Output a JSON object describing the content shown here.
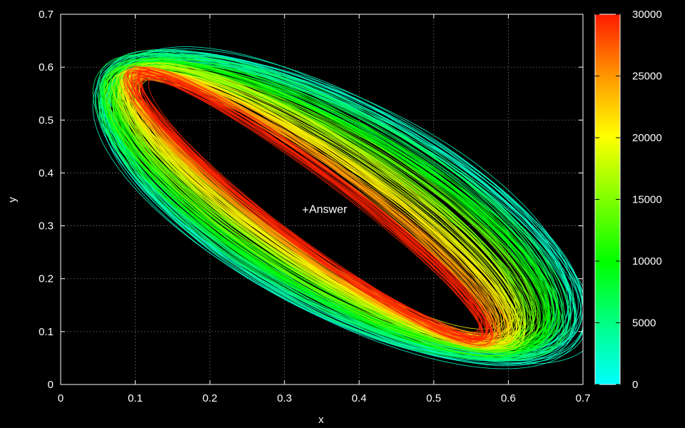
{
  "chart_data": {
    "type": "line",
    "description_of_marks": "ensemble of closed elliptical orbit traces colored by time step",
    "xlabel": "x",
    "ylabel": "y",
    "xlim": [
      0,
      0.7
    ],
    "ylim": [
      0,
      0.7
    ],
    "x_ticks": [
      "0",
      "0.1",
      "0.2",
      "0.3",
      "0.4",
      "0.5",
      "0.6",
      "0.7"
    ],
    "y_ticks": [
      "0",
      "0.1",
      "0.2",
      "0.3",
      "0.4",
      "0.5",
      "0.6",
      "0.7"
    ],
    "grid": true,
    "annotation": {
      "text": "Answer",
      "x": 0.33,
      "y": 0.33
    },
    "colorbar": {
      "range": [
        0,
        30000
      ],
      "ticks": [
        "0",
        "5000",
        "10000",
        "15000",
        "20000",
        "25000",
        "30000"
      ],
      "palette": [
        "#00ffff",
        "#00ff66",
        "#00ff00",
        "#80ff00",
        "#ffff00",
        "#ff9900",
        "#ff2200"
      ]
    },
    "series": [
      {
        "t": 2000,
        "color": "#00ffcc",
        "cx": 0.375,
        "cy": 0.335,
        "a": 0.395,
        "b": 0.165,
        "angle_deg": -41
      },
      {
        "t": 5000,
        "color": "#00ff66",
        "cx": 0.365,
        "cy": 0.335,
        "a": 0.385,
        "b": 0.15,
        "angle_deg": -42
      },
      {
        "t": 9000,
        "color": "#00ff00",
        "cx": 0.36,
        "cy": 0.335,
        "a": 0.375,
        "b": 0.135,
        "angle_deg": -42
      },
      {
        "t": 13000,
        "color": "#66ff00",
        "cx": 0.355,
        "cy": 0.335,
        "a": 0.365,
        "b": 0.118,
        "angle_deg": -43
      },
      {
        "t": 17000,
        "color": "#ccff00",
        "cx": 0.35,
        "cy": 0.335,
        "a": 0.358,
        "b": 0.1,
        "angle_deg": -44
      },
      {
        "t": 21000,
        "color": "#ffee00",
        "cx": 0.345,
        "cy": 0.335,
        "a": 0.35,
        "b": 0.085,
        "angle_deg": -45
      },
      {
        "t": 25000,
        "color": "#ff9900",
        "cx": 0.34,
        "cy": 0.335,
        "a": 0.345,
        "b": 0.07,
        "angle_deg": -46
      },
      {
        "t": 29000,
        "color": "#ff2200",
        "cx": 0.335,
        "cy": 0.335,
        "a": 0.34,
        "b": 0.058,
        "angle_deg": -47
      }
    ]
  }
}
